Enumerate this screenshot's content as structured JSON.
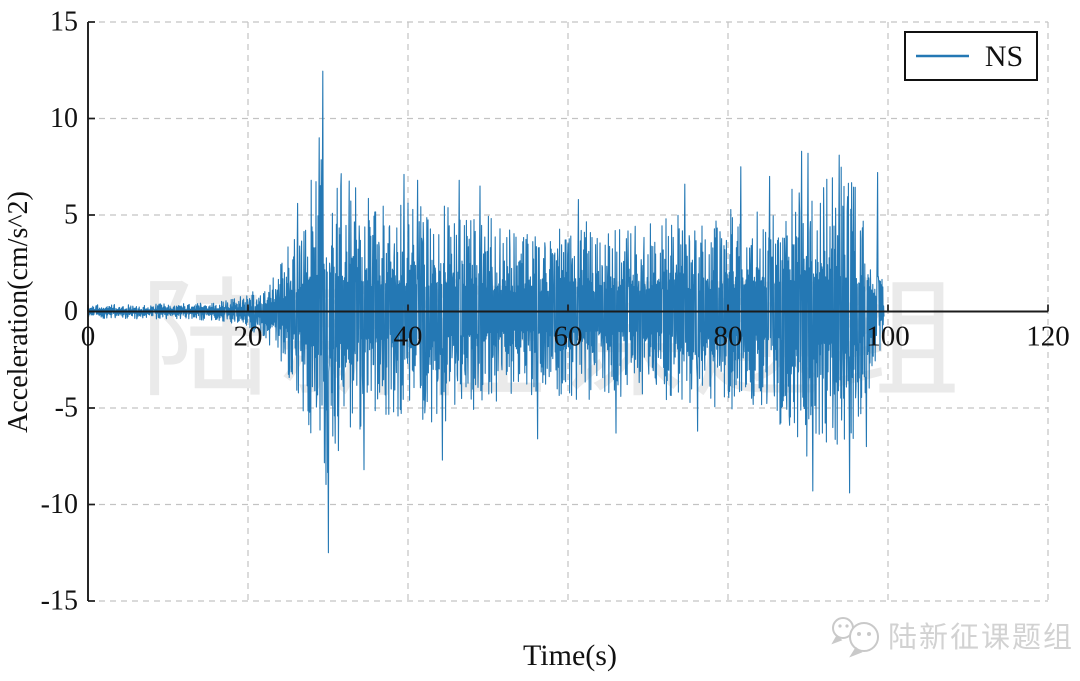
{
  "chart_data": {
    "type": "line",
    "title": "",
    "xlabel": "Time(s)",
    "ylabel": "Acceleration(cm/s^2)",
    "xlim": [
      0,
      120
    ],
    "ylim": [
      -15,
      15
    ],
    "x_ticks": [
      0,
      20,
      40,
      60,
      80,
      100,
      120
    ],
    "y_ticks": [
      -15,
      -10,
      -5,
      0,
      5,
      10,
      15
    ],
    "grid": {
      "style": "dashed",
      "color": "#c3c3c3"
    },
    "legend": {
      "position": "top-right",
      "entries": [
        {
          "label": "NS",
          "color": "#2478b4"
        }
      ]
    },
    "series": [
      {
        "name": "NS",
        "color": "#2478b4",
        "duration_s": 99.5,
        "sample_step_s": 0.05,
        "envelope": [
          [
            0,
            0.35
          ],
          [
            10,
            0.4
          ],
          [
            15,
            0.45
          ],
          [
            18,
            0.65
          ],
          [
            20,
            0.9
          ],
          [
            22,
            1.4
          ],
          [
            23.5,
            2.2
          ],
          [
            25,
            3.4
          ],
          [
            26.5,
            4.6
          ],
          [
            27.5,
            6.2
          ],
          [
            28.5,
            8.2
          ],
          [
            29.5,
            9.6
          ],
          [
            30.5,
            8.8
          ],
          [
            32,
            7.0
          ],
          [
            34,
            6.4
          ],
          [
            36,
            5.6
          ],
          [
            38,
            5.3
          ],
          [
            40,
            5.9
          ],
          [
            42,
            5.6
          ],
          [
            44,
            5.9
          ],
          [
            46,
            5.5
          ],
          [
            48,
            5.2
          ],
          [
            50,
            5.0
          ],
          [
            52,
            4.6
          ],
          [
            54,
            4.3
          ],
          [
            56,
            4.5
          ],
          [
            58,
            4.3
          ],
          [
            60,
            4.5
          ],
          [
            62,
            4.7
          ],
          [
            64,
            4.4
          ],
          [
            66,
            4.6
          ],
          [
            68,
            4.4
          ],
          [
            70,
            4.7
          ],
          [
            72,
            4.8
          ],
          [
            74,
            5.1
          ],
          [
            76,
            4.7
          ],
          [
            78,
            4.9
          ],
          [
            80,
            5.3
          ],
          [
            82,
            5.7
          ],
          [
            84,
            5.1
          ],
          [
            86,
            5.5
          ],
          [
            88,
            6.9
          ],
          [
            90,
            7.9
          ],
          [
            92,
            7.2
          ],
          [
            94,
            7.7
          ],
          [
            95.5,
            7.0
          ],
          [
            97,
            5.2
          ],
          [
            98,
            3.8
          ],
          [
            99,
            2.4
          ],
          [
            99.5,
            1.0
          ]
        ],
        "notable_peaks": [
          [
            26.2,
            5.6
          ],
          [
            28.9,
            9.0
          ],
          [
            29.35,
            12.45
          ],
          [
            30.05,
            -12.5
          ],
          [
            34.5,
            -8.2
          ],
          [
            39.5,
            7.1
          ],
          [
            41.2,
            6.8
          ],
          [
            44.3,
            -7.7
          ],
          [
            46.4,
            6.8
          ],
          [
            49.0,
            6.5
          ],
          [
            56.2,
            -6.6
          ],
          [
            61.3,
            5.8
          ],
          [
            66.0,
            -6.3
          ],
          [
            74.6,
            6.6
          ],
          [
            76.2,
            -6.2
          ],
          [
            81.6,
            7.5
          ],
          [
            85.2,
            7.0
          ],
          [
            89.2,
            8.3
          ],
          [
            90.0,
            8.2
          ],
          [
            90.6,
            -9.3
          ],
          [
            93.9,
            8.1
          ],
          [
            95.2,
            -9.4
          ],
          [
            97.3,
            -7.0
          ],
          [
            98.7,
            7.2
          ]
        ]
      }
    ]
  },
  "watermark": {
    "center_text": "陆新征课题组",
    "badge_text": "陆新征课题组",
    "badge_icon": "wechat-icon"
  },
  "colors": {
    "series": "#2478b4",
    "axis": "#1b1b1b",
    "grid": "#c3c3c3",
    "tick_text": "#111111",
    "watermark_center": "#eaeaea",
    "watermark_badge": "#d2d2d2",
    "legend_border": "#111111"
  }
}
